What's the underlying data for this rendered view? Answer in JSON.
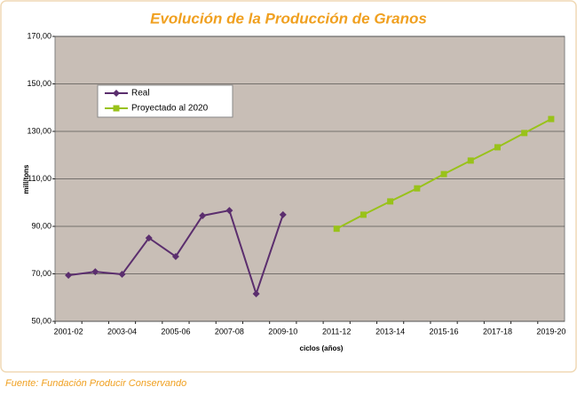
{
  "chart_data": {
    "type": "line",
    "title": "Evolución de la Producción de Granos",
    "y_label": "mill/tons",
    "x_label": "ciclos (años)",
    "source": "Fuente: Fundación Producir Conservando",
    "categories": [
      "2001-02",
      null,
      "2003-04",
      null,
      "2005-06",
      null,
      "2007-08",
      null,
      "2009-10",
      null,
      "2011-12",
      null,
      "2013-14",
      null,
      "2015-16",
      null,
      "2017-18",
      null,
      "2019-20"
    ],
    "series": [
      {
        "name": "Real",
        "color": "#5b2e6e",
        "marker": "diamond",
        "values": [
          69.4,
          70.9,
          69.8,
          85.1,
          77.3,
          94.5,
          96.7,
          61.6,
          94.9,
          null,
          null,
          null,
          null,
          null,
          null,
          null,
          null,
          null,
          null
        ]
      },
      {
        "name": "Proyectado al 2020",
        "color": "#99c21a",
        "marker": "square",
        "values": [
          null,
          null,
          null,
          null,
          null,
          null,
          null,
          null,
          null,
          null,
          89,
          94.9,
          100.5,
          106,
          112,
          117.7,
          123.3,
          129.3,
          135.2
        ]
      }
    ],
    "ylim": [
      50,
      170
    ],
    "yticks": [
      {
        "value": 50,
        "label": "50,00"
      },
      {
        "value": 70,
        "label": "70,00"
      },
      {
        "value": 90,
        "label": "90,00"
      },
      {
        "value": 110,
        "label": "110,00"
      },
      {
        "value": 130,
        "label": "130,00"
      },
      {
        "value": 150,
        "label": "150,00"
      },
      {
        "value": 170,
        "label": "170,00"
      }
    ],
    "grid": true,
    "legend": "upper left"
  }
}
